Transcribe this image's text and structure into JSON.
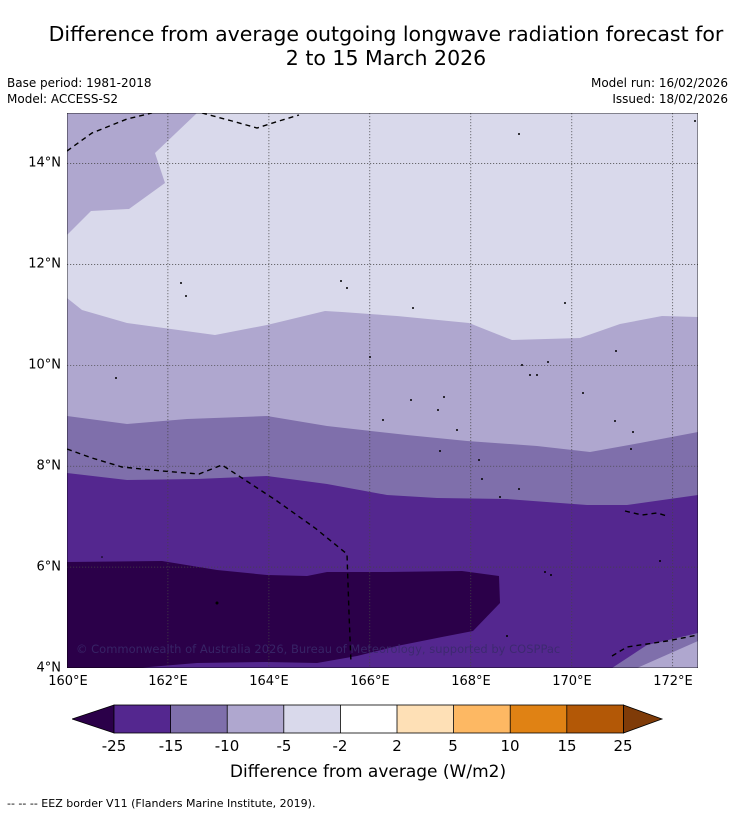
{
  "title": {
    "line1": "Difference from average outgoing longwave radiation forecast for",
    "line2": "2 to 15 March 2026"
  },
  "meta": {
    "base_period": "Base period: 1981-2018",
    "model": "Model: ACCESS-S2",
    "model_run": "Model run: 16/02/2026",
    "issued": "Issued: 18/02/2026"
  },
  "map": {
    "lat_labels": [
      "14°N",
      "12°N",
      "10°N",
      "8°N",
      "6°N",
      "4°N"
    ],
    "lat_values": [
      14,
      12,
      10,
      8,
      6,
      4
    ],
    "lon_labels": [
      "160°E",
      "162°E",
      "164°E",
      "166°E",
      "168°E",
      "170°E",
      "172°E"
    ],
    "lon_values": [
      160,
      162,
      164,
      166,
      168,
      170,
      172
    ],
    "lon_range": [
      160,
      172.5
    ],
    "lat_range": [
      4,
      15
    ],
    "copyright": "© Commonwealth of Australia 2026, Bureau of Meteorology, supported by COSPPac"
  },
  "colors": {
    "lt_m25": "#2b0049",
    "m25_m15": "#54278f",
    "m15_m10": "#7f6fab",
    "m10_m5": "#afa7cf",
    "m5_m2": "#d9d9eb",
    "m2_2": "#ffffff",
    "p2_5": "#fee0b6",
    "p5_10": "#fdb863",
    "p10_15": "#e08214",
    "p15_25": "#b35806",
    "gt_25": "#7f3b08"
  },
  "colorbar": {
    "bounds": [
      "-25",
      "-15",
      "-10",
      "-5",
      "-2",
      "2",
      "5",
      "10",
      "15",
      "25"
    ],
    "title": "Difference from average (W/m2)"
  },
  "footer": "--  --  -- EEZ border V11 (Flanders Marine Institute, 2019)."
}
